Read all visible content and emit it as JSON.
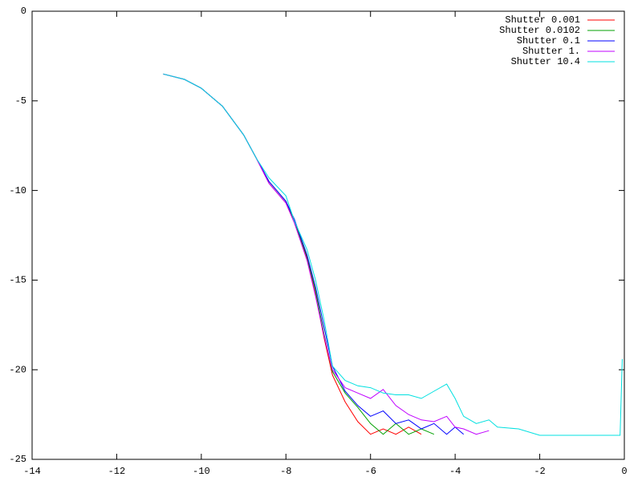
{
  "chart_data": {
    "type": "line",
    "x": [
      -10.9,
      -10.4,
      -10,
      -9.5,
      -9,
      -8.7,
      -8.4,
      -8,
      -7.8,
      -7.5,
      -7.3,
      -7.1,
      -6.9,
      -6.6,
      -6.3,
      -6,
      -5.7,
      -5.4,
      -5.1,
      -4.8,
      -4.5,
      -4.2,
      -4,
      -3.8,
      -3.5,
      -3.2,
      -3,
      -2.5,
      -2,
      -1.5,
      -1,
      -0.5,
      -0.1,
      -0.05
    ],
    "series": [
      {
        "name": "Shutter 0.001",
        "color": "#ff0000",
        "values": [
          -3.5,
          -3.8,
          -4.3,
          -5.3,
          -6.9,
          -8.2,
          -9.6,
          -10.7,
          -11.8,
          -13.8,
          -15.8,
          -18.2,
          -20.3,
          -21.8,
          -22.9,
          -23.6,
          -23.3,
          -23.6,
          -23.2,
          -23.6,
          null,
          null,
          null,
          null,
          null,
          null,
          null,
          null,
          null,
          null,
          null,
          null,
          null,
          null
        ]
      },
      {
        "name": "Shutter 0.0102",
        "color": "#00a000",
        "values": [
          -3.5,
          -3.8,
          -4.3,
          -5.3,
          -6.9,
          -8.2,
          -9.5,
          -10.6,
          -11.7,
          -13.7,
          -15.6,
          -18,
          -20.1,
          -21.3,
          -22.1,
          -23,
          -23.6,
          -23,
          -23.6,
          -23.3,
          -23.6,
          null,
          null,
          null,
          null,
          null,
          null,
          null,
          null,
          null,
          null,
          null,
          null,
          null
        ]
      },
      {
        "name": "Shutter 0.1",
        "color": "#0000ff",
        "values": [
          -3.5,
          -3.8,
          -4.3,
          -5.3,
          -6.9,
          -8.2,
          -9.5,
          -10.6,
          -11.6,
          -13.6,
          -15.4,
          -17.6,
          -19.8,
          -21.2,
          -22,
          -22.6,
          -22.3,
          -23,
          -22.8,
          -23.3,
          -23,
          -23.6,
          -23.2,
          -23.6,
          null,
          null,
          null,
          null,
          null,
          null,
          null,
          null,
          null,
          null
        ]
      },
      {
        "name": "Shutter 1.",
        "color": "#c000ff",
        "values": [
          -3.5,
          -3.8,
          -4.3,
          -5.3,
          -6.9,
          -8.2,
          -9.6,
          -10.7,
          -11.8,
          -13.9,
          -15.9,
          -18.1,
          -20,
          -21,
          -21.3,
          -21.6,
          -21.1,
          -22,
          -22.5,
          -22.8,
          -22.9,
          -22.6,
          -23.2,
          -23.3,
          -23.6,
          -23.4,
          null,
          null,
          null,
          null,
          null,
          null,
          null,
          null
        ]
      },
      {
        "name": "Shutter 10.4",
        "color": "#00e0e0",
        "values": [
          -3.5,
          -3.8,
          -4.3,
          -5.3,
          -6.9,
          -8.2,
          -9.3,
          -10.3,
          -11.7,
          -13.3,
          -15,
          -17.2,
          -19.8,
          -20.6,
          -20.9,
          -21,
          -21.3,
          -21.4,
          -21.4,
          -21.6,
          -21.2,
          -20.8,
          -21.6,
          -22.6,
          -23,
          -22.8,
          -23.2,
          -23.3,
          -23.66,
          -23.66,
          -23.66,
          -23.66,
          -23.66,
          -19.4
        ]
      }
    ],
    "xlim": [
      -14,
      0
    ],
    "xticks": [
      -14,
      -12,
      -10,
      -8,
      -6,
      -4,
      -2,
      0
    ],
    "ylim": [
      -25,
      0
    ],
    "yticks": [
      -25,
      -20,
      -15,
      -10,
      -5,
      0
    ],
    "legend": "top-right"
  }
}
